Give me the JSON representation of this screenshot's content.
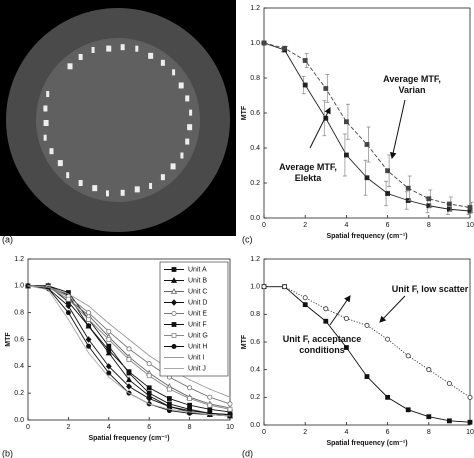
{
  "image": {
    "label": "(a)"
  },
  "chart_data": [
    {
      "type": "line",
      "label": "(c)",
      "x_label": "Spatial frequency (cm⁻¹)",
      "y_label": "MTF",
      "x": [
        0,
        1,
        2,
        3,
        4,
        5,
        6,
        7,
        8,
        9,
        10
      ],
      "xlim": [
        0,
        10
      ],
      "xticks": [
        0,
        2,
        4,
        6,
        8,
        10
      ],
      "ylim": [
        0,
        1.2
      ],
      "yticks": [
        {
          "value": 0,
          "label": "0.0"
        },
        {
          "value": 0.2,
          "label": "0.2"
        },
        {
          "value": 0.4,
          "label": "0.4"
        },
        {
          "value": 0.6,
          "label": "0.6"
        },
        {
          "value": 0.8,
          "label": "0.8"
        },
        {
          "value": 1.0,
          "label": "1.0"
        },
        {
          "value": 1.2,
          "label": "1.2"
        }
      ],
      "series": [
        {
          "color": "#222",
          "marker": "square",
          "dash": "solid",
          "values": [
            1.0,
            0.96,
            0.76,
            0.57,
            0.36,
            0.23,
            0.14,
            0.1,
            0.07,
            0.05,
            0.04
          ],
          "errors": [
            0,
            0.01,
            0.05,
            0.1,
            0.12,
            0.1,
            0.07,
            0.05,
            0.04,
            0.03,
            0.02
          ]
        },
        {
          "color": "#444",
          "marker": "square",
          "dash": "dashed",
          "values": [
            1.0,
            0.97,
            0.9,
            0.74,
            0.55,
            0.42,
            0.27,
            0.17,
            0.11,
            0.08,
            0.06
          ],
          "errors": [
            0,
            0.01,
            0.04,
            0.08,
            0.1,
            0.1,
            0.09,
            0.07,
            0.05,
            0.04,
            0.03
          ]
        }
      ],
      "annotations": [
        {
          "lines": [
            "Average MTF,",
            "Varian"
          ]
        },
        {
          "lines": [
            "Average MTF,",
            "Elekta"
          ]
        }
      ]
    },
    {
      "type": "line",
      "label": "(b)",
      "x_label": "Spatial frequency (cm⁻¹)",
      "y_label": "MTF",
      "x": [
        0,
        1,
        2,
        3,
        4,
        5,
        6,
        7,
        8,
        9,
        10
      ],
      "xlim": [
        0,
        10
      ],
      "xticks": [
        0,
        2,
        4,
        6,
        8,
        10
      ],
      "ylim": [
        0,
        1.2
      ],
      "yticks": [
        {
          "value": 0,
          "label": "0.0"
        },
        {
          "value": 0.2,
          "label": "0.2"
        },
        {
          "value": 0.4,
          "label": "0.4"
        },
        {
          "value": 0.6,
          "label": "0.6"
        },
        {
          "value": 0.8,
          "label": "0.8"
        },
        {
          "value": 1.0,
          "label": "1.0"
        },
        {
          "value": 1.2,
          "label": "1.2"
        }
      ],
      "legend": "top-right",
      "series": [
        {
          "name": "Unit A",
          "color": "#111",
          "marker": "square",
          "dash": "solid",
          "values": [
            1,
            1,
            0.95,
            0.75,
            0.55,
            0.35,
            0.2,
            0.12,
            0.08,
            0.05,
            0.04
          ]
        },
        {
          "name": "Unit B",
          "color": "#111",
          "marker": "triangle",
          "dash": "solid",
          "values": [
            1,
            1,
            0.93,
            0.7,
            0.5,
            0.3,
            0.18,
            0.1,
            0.06,
            0.04,
            0.03
          ]
        },
        {
          "name": "Unit C",
          "color": "#666",
          "marker": "open-triangle",
          "dash": "solid",
          "values": [
            1,
            0.99,
            0.9,
            0.78,
            0.62,
            0.47,
            0.35,
            0.25,
            0.17,
            0.12,
            0.09
          ]
        },
        {
          "name": "Unit D",
          "color": "#111",
          "marker": "diamond",
          "dash": "solid",
          "values": [
            1,
            0.98,
            0.85,
            0.6,
            0.4,
            0.25,
            0.16,
            0.1,
            0.07,
            0.05,
            0.04
          ]
        },
        {
          "name": "Unit E",
          "color": "#777",
          "marker": "open-circle",
          "dash": "solid",
          "values": [
            1,
            0.99,
            0.92,
            0.8,
            0.66,
            0.53,
            0.42,
            0.32,
            0.24,
            0.17,
            0.12
          ]
        },
        {
          "name": "Unit F",
          "color": "#111",
          "marker": "square",
          "dash": "solid",
          "values": [
            1,
            1,
            0.88,
            0.7,
            0.52,
            0.36,
            0.24,
            0.16,
            0.11,
            0.08,
            0.06
          ]
        },
        {
          "name": "Unit G",
          "color": "#888",
          "marker": "open-square",
          "dash": "solid",
          "values": [
            1,
            0.99,
            0.9,
            0.75,
            0.6,
            0.45,
            0.33,
            0.23,
            0.16,
            0.11,
            0.08
          ]
        },
        {
          "name": "Unit H",
          "color": "#111",
          "marker": "circle",
          "dash": "solid",
          "values": [
            1,
            0.98,
            0.8,
            0.55,
            0.35,
            0.2,
            0.12,
            0.07,
            0.05,
            0.04,
            0.03
          ]
        },
        {
          "name": "Unit I",
          "color": "#999",
          "marker": "none",
          "dash": "solid",
          "values": [
            1,
            0.99,
            0.94,
            0.85,
            0.72,
            0.6,
            0.48,
            0.38,
            0.3,
            0.23,
            0.17
          ]
        },
        {
          "name": "Unit J",
          "color": "#aaa",
          "marker": "none",
          "dash": "solid",
          "values": [
            1,
            0.97,
            0.75,
            0.5,
            0.32,
            0.2,
            0.12,
            0.08,
            0.06,
            0.04,
            0.03
          ]
        }
      ]
    },
    {
      "type": "line",
      "label": "(d)",
      "x_label": "Spatial frequency (cm⁻¹)",
      "y_label": "MTF",
      "x": [
        0,
        1,
        2,
        3,
        4,
        5,
        6,
        7,
        8,
        9,
        10
      ],
      "xlim": [
        0,
        10
      ],
      "xticks": [
        0,
        2,
        4,
        6,
        8,
        10
      ],
      "ylim": [
        0,
        1.2
      ],
      "yticks": [
        {
          "value": 0,
          "label": "0.0"
        },
        {
          "value": 0.2,
          "label": "0.2"
        },
        {
          "value": 0.4,
          "label": "0.4"
        },
        {
          "value": 0.6,
          "label": "0.6"
        },
        {
          "value": 0.8,
          "label": "0.8"
        },
        {
          "value": 1.0,
          "label": "1.0"
        },
        {
          "value": 1.2,
          "label": "1.2"
        }
      ],
      "series": [
        {
          "color": "#111",
          "marker": "square",
          "dash": "solid",
          "values": [
            1.0,
            1.0,
            0.87,
            0.75,
            0.56,
            0.35,
            0.2,
            0.11,
            0.06,
            0.03,
            0.02
          ]
        },
        {
          "color": "#333",
          "marker": "open-circle",
          "dash": "dotted",
          "values": [
            1.0,
            1.0,
            0.92,
            0.84,
            0.77,
            0.72,
            0.62,
            0.5,
            0.4,
            0.3,
            0.2
          ]
        }
      ],
      "annotations": [
        {
          "lines": [
            "Unit F, low scatter"
          ]
        },
        {
          "lines": [
            "Unit F, acceptance",
            "conditions"
          ]
        }
      ]
    }
  ]
}
